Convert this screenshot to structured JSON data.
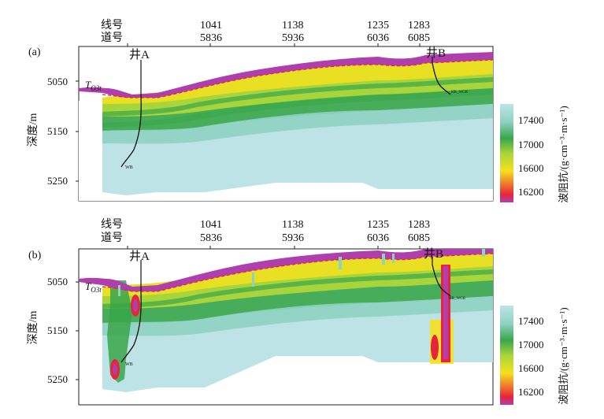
{
  "header": {
    "row1_label": "线号",
    "row2_label": "道号",
    "line_numbers": [
      "1041",
      "1138",
      "1235",
      "1283"
    ],
    "trace_numbers": [
      "5836",
      "5936",
      "6036",
      "6085"
    ]
  },
  "panels": [
    {
      "tag": "(a)",
      "variant": "model"
    },
    {
      "tag": "(b)",
      "variant": "inversion"
    }
  ],
  "axes": {
    "ylabel": "深度/m",
    "ylabel_a": "深度/m",
    "yticks": [
      "5050",
      "5150",
      "5250"
    ]
  },
  "horizon_label": "T",
  "horizon_sub": "O3t",
  "wells": {
    "well_a": "井A",
    "well_b": "井B",
    "well_a_tag": "WB",
    "well_b_tag": "HR_WGR"
  },
  "colorbar": {
    "title": "波阻抗/(g·cm⁻³·m·s⁻¹)",
    "ticks": [
      "17400",
      "17000",
      "16600",
      "16200"
    ],
    "range": [
      16000,
      17700
    ],
    "colors": [
      "#b03fae",
      "#e8243a",
      "#f5e11e",
      "#a8d43c",
      "#3aa64a",
      "#8fd2c2",
      "#bde3e6"
    ]
  }
}
